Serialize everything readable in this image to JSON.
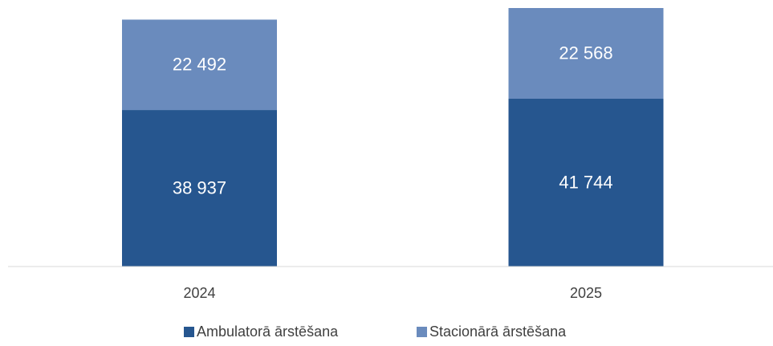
{
  "chart_data": {
    "type": "stacked_bar",
    "categories": [
      "2024",
      "2025"
    ],
    "series": [
      {
        "name": "Ambulatorā ārstēšana",
        "color": "#26568f",
        "values": [
          38937,
          41744
        ],
        "value_labels": [
          "38 937",
          "41 744"
        ]
      },
      {
        "name": "Stacionārā ārstēšana",
        "color": "#6a8bbd",
        "values": [
          22492,
          22568
        ],
        "value_labels": [
          "22 492",
          "22 568"
        ]
      }
    ],
    "legend": "bottom"
  }
}
